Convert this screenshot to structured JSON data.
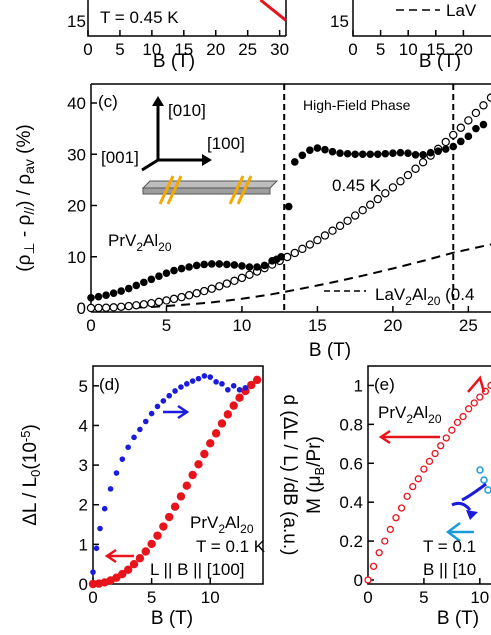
{
  "chart_data": [
    {
      "panel": "top-left (partial)",
      "type": "line",
      "annotation": "T = 0.45 K",
      "xlabel": "B (T)",
      "xticks": [
        "0",
        "5",
        "10",
        "15",
        "20",
        "25",
        "30"
      ],
      "yticks": [
        "15"
      ],
      "xlim": [
        0,
        31
      ],
      "series": [
        {
          "color": "#e8141c",
          "x": [
            27,
            29,
            30,
            31
          ],
          "y": [
            20.5,
            18.5,
            17.5,
            16.5
          ]
        }
      ]
    },
    {
      "panel": "top-right (partial)",
      "type": "line",
      "legend": [
        "LaV"
      ],
      "xlabel": "B (T)",
      "xticks": [
        "0",
        "5",
        "10",
        "15",
        "20"
      ],
      "yticks": [
        "15"
      ],
      "xlim": [
        0,
        25
      ]
    },
    {
      "panel": "(c)",
      "type": "scatter",
      "label": "(c)",
      "xlabel": "B (T)",
      "ylabel": "(ρ⊥ - ρ//) / ρav (%)",
      "xlim": [
        0,
        26.5
      ],
      "ylim": [
        -1,
        44
      ],
      "xticks": [
        "0",
        "5",
        "10",
        "15",
        "20",
        "25"
      ],
      "yticks": [
        "0",
        "10",
        "20",
        "30",
        "40"
      ],
      "phase_boundaries": [
        12.8,
        24
      ],
      "region_label": "High-Field Phase",
      "temperature_label": "0.45 K",
      "sample_label": "PrV2Al20",
      "la_label": "LaV2Al20 (0.4",
      "axes_labels": {
        "up": "[010]",
        "right": "[100]",
        "left": "[001]"
      },
      "series": [
        {
          "name": "PrV2Al20",
          "marker": "filled-circle",
          "color": "#000000",
          "x": [
            0,
            0.5,
            1,
            1.5,
            2,
            2.5,
            3,
            3.5,
            4,
            4.5,
            5,
            5.5,
            6,
            6.5,
            7,
            7.5,
            8,
            8.5,
            9,
            9.5,
            10,
            10.5,
            11,
            11.5,
            12,
            12.3,
            12.6,
            13.1,
            13.5,
            14,
            14.5,
            15,
            15.5,
            16,
            16.5,
            17,
            17.5,
            18,
            18.5,
            19,
            19.5,
            20,
            20.5,
            21,
            21.5,
            22,
            22.5,
            23,
            23.5,
            24,
            24.5,
            25,
            25.5,
            26
          ],
          "y": [
            2,
            2.2,
            2.5,
            2.9,
            3.3,
            3.8,
            4.4,
            5,
            5.6,
            6.2,
            6.8,
            7.3,
            7.7,
            8,
            8.3,
            8.5,
            8.6,
            8.6,
            8.5,
            8.4,
            8.2,
            8,
            8,
            8.3,
            9.2,
            9.5,
            10,
            19.8,
            28.5,
            29.8,
            30.8,
            31.2,
            30.9,
            30.5,
            30.2,
            30.1,
            30,
            30,
            30,
            30,
            30.1,
            30.2,
            30.3,
            30.2,
            29.9,
            29.9,
            30.3,
            30.6,
            31,
            31.5,
            32.5,
            33.5,
            35,
            35.8
          ]
        },
        {
          "name": "PrV2Al20 (open)",
          "marker": "open-circle",
          "color": "#000000",
          "x": [
            0,
            0.5,
            1,
            1.5,
            2,
            2.5,
            3,
            3.5,
            4,
            4.5,
            5,
            5.5,
            6,
            6.5,
            7,
            7.5,
            8,
            8.5,
            9,
            9.5,
            10,
            10.5,
            11,
            11.5,
            12,
            12.5,
            13,
            13.5,
            14,
            14.5,
            15,
            15.5,
            16,
            16.5,
            17,
            17.5,
            18,
            18.5,
            19,
            19.5,
            20,
            20.5,
            21,
            21.5,
            22,
            22.5,
            23,
            23.5,
            24,
            24.5,
            25,
            25.5,
            26,
            26.5
          ],
          "y": [
            0,
            0.02,
            0.05,
            0.13,
            0.24,
            0.37,
            0.53,
            0.72,
            0.94,
            1.2,
            1.47,
            1.78,
            2.12,
            2.49,
            2.88,
            3.3,
            3.76,
            4.24,
            4.76,
            5.3,
            5.88,
            6.48,
            7.11,
            7.78,
            8.47,
            9.19,
            9.95,
            10.73,
            11.54,
            12.38,
            13.25,
            14.15,
            15.08,
            16.03,
            17.02,
            18.04,
            19.08,
            20.15,
            21.25,
            22.38,
            23.53,
            24.72,
            25.93,
            27.17,
            28.43,
            29.73,
            31.05,
            32.4,
            33.77,
            35.17,
            36.6,
            38.06,
            39.54,
            41.05
          ]
        },
        {
          "name": "LaV2Al20",
          "marker": "dashed-line",
          "color": "#000000",
          "x": [
            2,
            4,
            6,
            8,
            10,
            12,
            14,
            16,
            18,
            20,
            22,
            24,
            26.5
          ],
          "y": [
            0,
            0.2,
            0.6,
            1.1,
            1.8,
            2.7,
            3.8,
            5,
            6.3,
            7.7,
            9.2,
            10.8,
            12.4
          ]
        }
      ]
    },
    {
      "panel": "(d)",
      "type": "scatter",
      "label": "(d)",
      "xlabel": "B (T)",
      "ylabel": "ΔL / L0 (10⁻⁵)",
      "ylabel_right": "d (ΔL / L) /dB (a.u.)",
      "xlim": [
        0,
        14.5
      ],
      "ylim": [
        0,
        5.5
      ],
      "xticks": [
        "0",
        "5",
        "10"
      ],
      "yticks": [
        "0",
        "1",
        "2",
        "3",
        "4",
        "5"
      ],
      "annotations": [
        "PrV2Al20",
        "T = 0.1 K",
        "L || B || [100]"
      ],
      "series": [
        {
          "name": "ΔL/L0",
          "color": "#e8141c",
          "x": [
            0,
            0.5,
            1,
            1.5,
            2,
            2.5,
            3,
            3.5,
            4,
            4.5,
            5,
            5.5,
            6,
            6.5,
            7,
            7.5,
            8,
            8.5,
            9,
            9.5,
            10,
            10.5,
            11,
            11.5,
            12,
            12.5,
            13,
            13.5,
            14
          ],
          "y": [
            0,
            0.01,
            0.04,
            0.09,
            0.16,
            0.25,
            0.36,
            0.5,
            0.65,
            0.82,
            1.01,
            1.22,
            1.45,
            1.69,
            1.95,
            2.21,
            2.48,
            2.75,
            3.02,
            3.28,
            3.55,
            3.8,
            4.05,
            4.28,
            4.5,
            4.7,
            4.87,
            5.02,
            5.15
          ]
        },
        {
          "name": "d(ΔL/L)/dB",
          "color": "#1b1bdc",
          "x": [
            0,
            0.3,
            0.6,
            1,
            1.5,
            2,
            2.5,
            3,
            3.5,
            4,
            4.5,
            5,
            5.5,
            6,
            6.5,
            7,
            7.5,
            8,
            8.5,
            9,
            9.5,
            10,
            10.5,
            11,
            11.5,
            12,
            12.5,
            13
          ],
          "y": [
            0.3,
            0.9,
            1.4,
            1.9,
            2.4,
            2.8,
            3.15,
            3.45,
            3.7,
            3.9,
            4.1,
            4.3,
            4.48,
            4.62,
            4.75,
            4.87,
            4.97,
            5.05,
            5.12,
            5.18,
            5.25,
            5.22,
            5.1,
            5.05,
            4.9,
            5,
            4.9,
            4.95
          ]
        }
      ]
    },
    {
      "panel": "(e)",
      "type": "scatter",
      "label": "(e)",
      "xlabel": "B (T)",
      "ylabel": "M (μB/Pr)",
      "xlim": [
        0,
        11
      ],
      "ylim": [
        0,
        1.1
      ],
      "xticks": [
        "0",
        "5",
        "10"
      ],
      "yticks": [
        "0",
        "0.2",
        "0.4",
        "0.6",
        "0.8",
        "1"
      ],
      "annotations": [
        "PrV2Al20",
        "T = 0.1",
        "B || [10"
      ],
      "series": [
        {
          "name": "M",
          "marker": "open-circle",
          "color": "#e8141c",
          "x": [
            0,
            0.5,
            1,
            1.5,
            2,
            2.5,
            3,
            3.5,
            4,
            4.5,
            5,
            5.5,
            6,
            6.5,
            7,
            7.5,
            8,
            8.5,
            9,
            9.5,
            10,
            10.5,
            11
          ],
          "y": [
            0,
            0.07,
            0.14,
            0.2,
            0.26,
            0.32,
            0.37,
            0.43,
            0.48,
            0.52,
            0.57,
            0.61,
            0.65,
            0.69,
            0.73,
            0.77,
            0.81,
            0.84,
            0.88,
            0.91,
            0.94,
            0.97,
            1
          ]
        }
      ]
    }
  ]
}
